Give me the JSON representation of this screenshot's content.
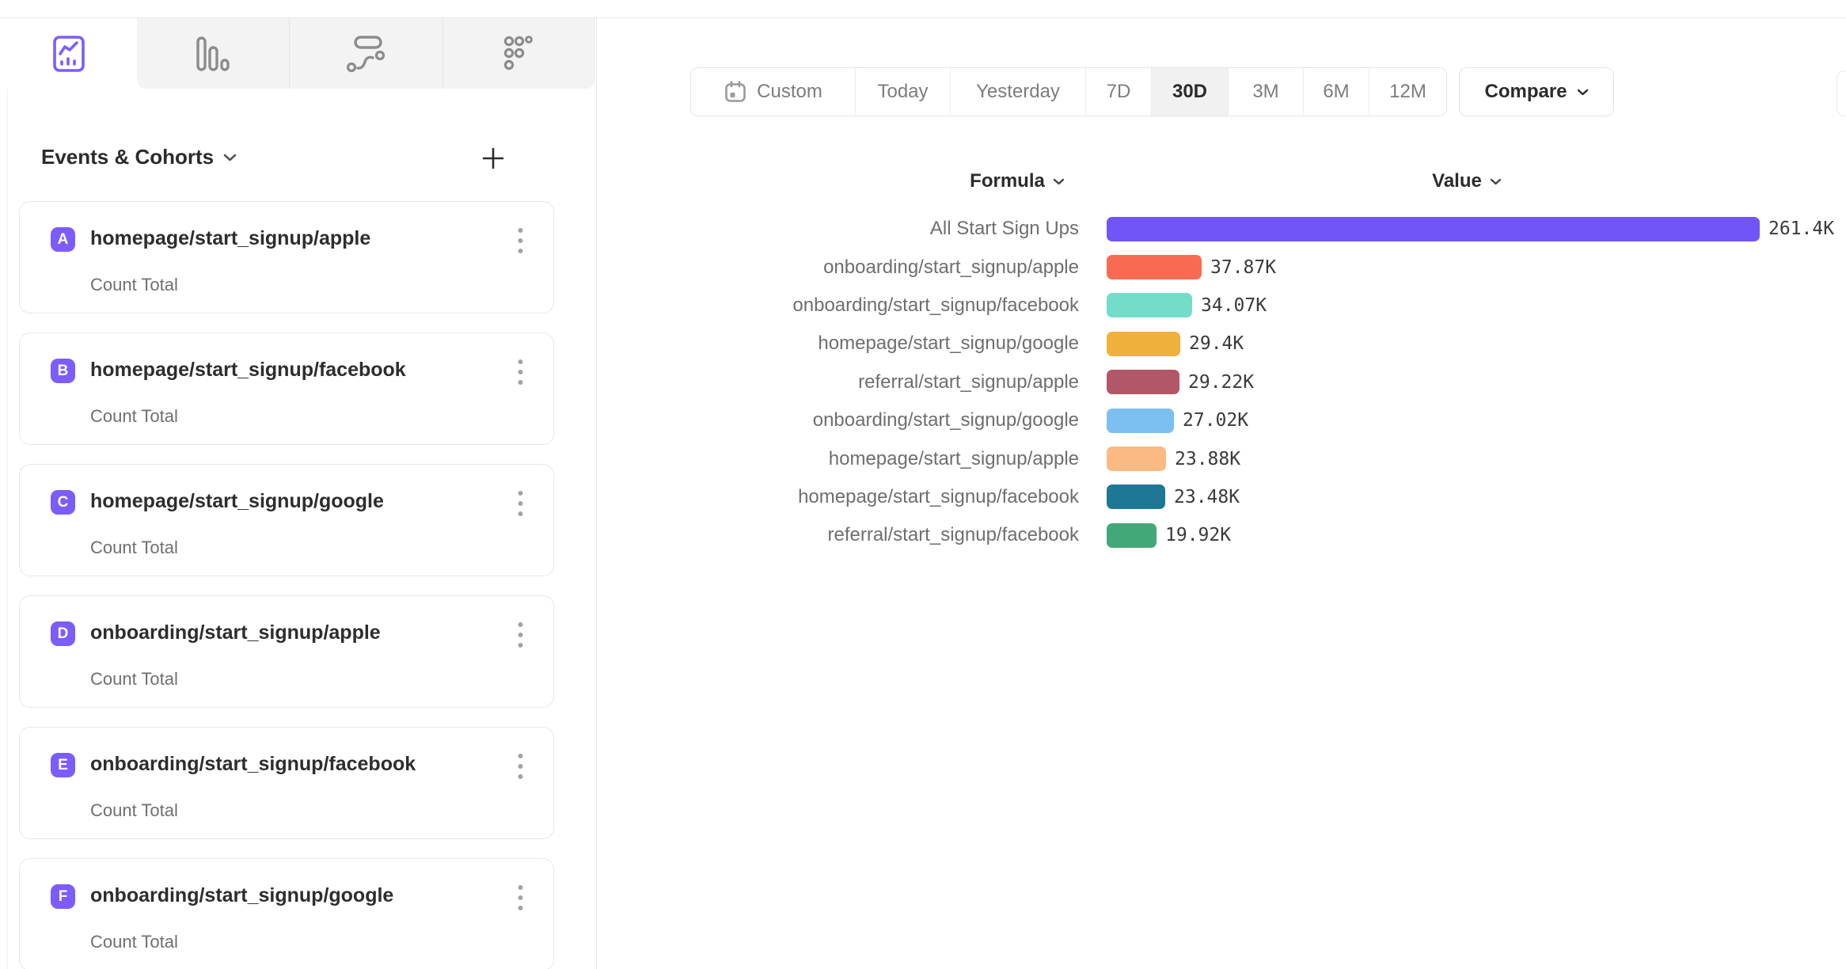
{
  "report_tabs": [
    {
      "id": "insights",
      "icon": "insights-chart-icon",
      "active": true
    },
    {
      "id": "funnels",
      "icon": "funnel-bars-icon",
      "active": false
    },
    {
      "id": "flows",
      "icon": "flows-squiggle-icon",
      "active": false
    },
    {
      "id": "retention",
      "icon": "retention-dots-icon",
      "active": false
    }
  ],
  "sidebar": {
    "header": "Events & Cohorts",
    "add_label": "+",
    "events": [
      {
        "letter": "A",
        "name": "homepage/start_signup/apple",
        "metric": "Count Total"
      },
      {
        "letter": "B",
        "name": "homepage/start_signup/facebook",
        "metric": "Count Total"
      },
      {
        "letter": "C",
        "name": "homepage/start_signup/google",
        "metric": "Count Total"
      },
      {
        "letter": "D",
        "name": "onboarding/start_signup/apple",
        "metric": "Count Total"
      },
      {
        "letter": "E",
        "name": "onboarding/start_signup/facebook",
        "metric": "Count Total"
      },
      {
        "letter": "F",
        "name": "onboarding/start_signup/google",
        "metric": "Count Total"
      }
    ],
    "badge_color": "#7c5cfc"
  },
  "toolbar": {
    "ranges": [
      "Custom",
      "Today",
      "Yesterday",
      "7D",
      "30D",
      "3M",
      "6M",
      "12M"
    ],
    "active_range": "30D",
    "compare_label": "Compare"
  },
  "chart_data": {
    "type": "bar",
    "orientation": "horizontal",
    "headers": {
      "formula": "Formula",
      "value": "Value"
    },
    "xlim": [
      0,
      261400
    ],
    "grid": false,
    "rows": [
      {
        "label": "All Start Sign Ups",
        "value": 261400,
        "value_label": "261.4K",
        "color": "#7155f5"
      },
      {
        "label": "onboarding/start_signup/apple",
        "value": 37870,
        "value_label": "37.87K",
        "color": "#f86b52"
      },
      {
        "label": "onboarding/start_signup/facebook",
        "value": 34070,
        "value_label": "34.07K",
        "color": "#74ddc9"
      },
      {
        "label": "homepage/start_signup/google",
        "value": 29400,
        "value_label": "29.4K",
        "color": "#f0b13c"
      },
      {
        "label": "referral/start_signup/apple",
        "value": 29220,
        "value_label": "29.22K",
        "color": "#b25768"
      },
      {
        "label": "onboarding/start_signup/google",
        "value": 27020,
        "value_label": "27.02K",
        "color": "#7cc0f2"
      },
      {
        "label": "homepage/start_signup/apple",
        "value": 23880,
        "value_label": "23.88K",
        "color": "#fbba82"
      },
      {
        "label": "homepage/start_signup/facebook",
        "value": 23480,
        "value_label": "23.48K",
        "color": "#1f7796"
      },
      {
        "label": "referral/start_signup/facebook",
        "value": 19920,
        "value_label": "19.92K",
        "color": "#43a877"
      }
    ]
  }
}
